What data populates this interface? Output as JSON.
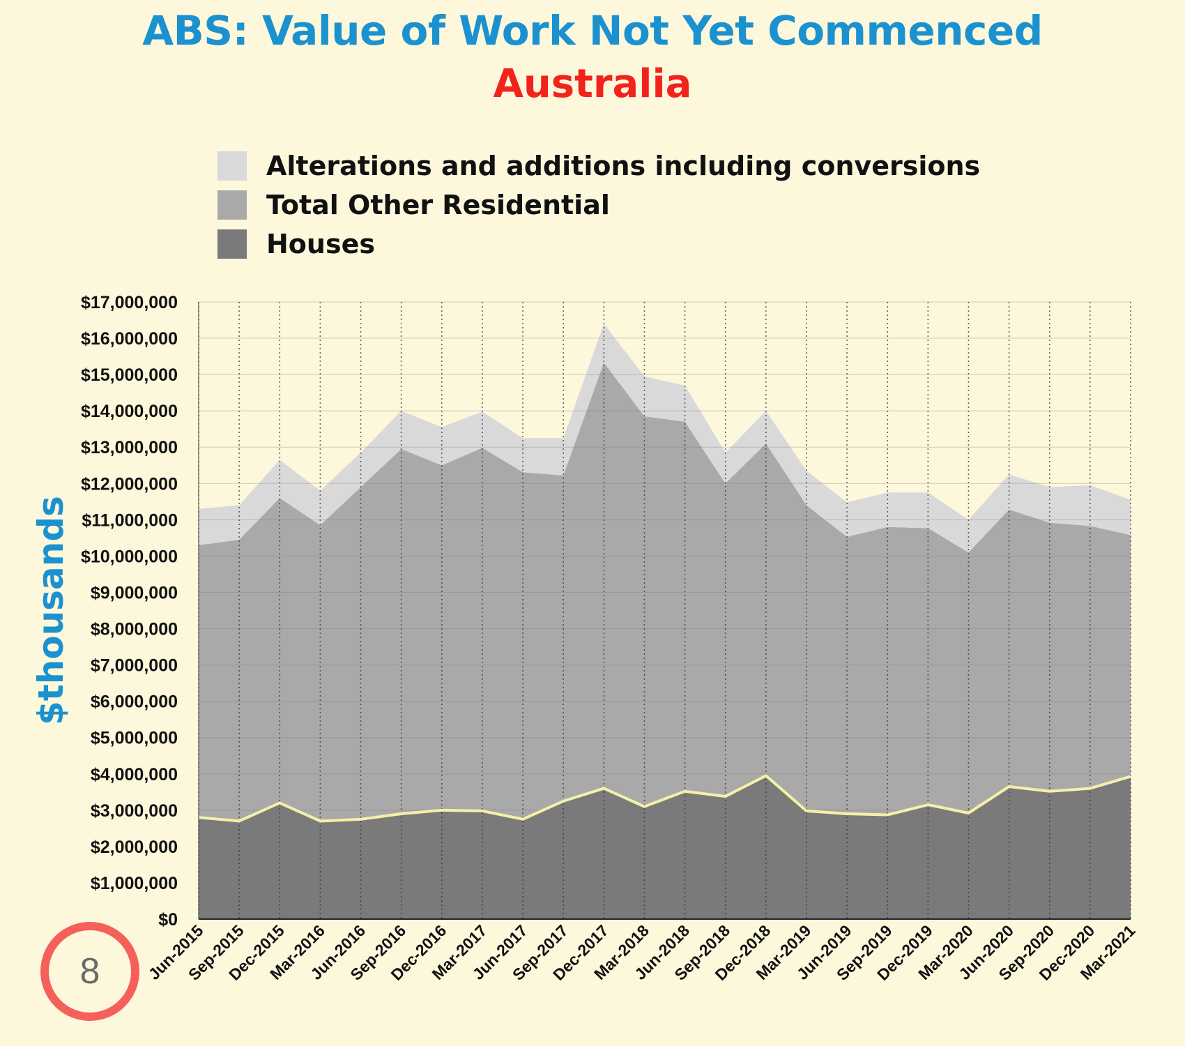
{
  "header": {
    "title": "ABS: Value of Work Not Yet Commenced",
    "subtitle": "Australia"
  },
  "badge": {
    "number": "8"
  },
  "colors": {
    "background": "#fdf7dc",
    "title": "#1b92cf",
    "subtitle": "#f2231b",
    "alterations": "#d9d9d9",
    "other_residential": "#a9a9a9",
    "houses": "#7a7a7a",
    "houses_outline": "#f4f1a6",
    "badge_ring": "#f5615a"
  },
  "chart_data": {
    "type": "area",
    "stacked": true,
    "title": "ABS: Value of Work Not Yet Commenced",
    "subtitle": "Australia",
    "ylabel": "$thousands",
    "xlabel": "",
    "ylim": [
      0,
      17000000
    ],
    "yticks": [
      "$0",
      "$1,000,000",
      "$2,000,000",
      "$3,000,000",
      "$4,000,000",
      "$5,000,000",
      "$6,000,000",
      "$7,000,000",
      "$8,000,000",
      "$9,000,000",
      "$10,000,000",
      "$11,000,000",
      "$12,000,000",
      "$13,000,000",
      "$14,000,000",
      "$15,000,000",
      "$16,000,000",
      "$17,000,000"
    ],
    "grid": {
      "horizontal": true,
      "vertical": "dotted"
    },
    "legend_position": "top",
    "categories": [
      "Jun-2015",
      "Sep-2015",
      "Dec-2015",
      "Mar-2016",
      "Jun-2016",
      "Sep-2016",
      "Dec-2016",
      "Mar-2017",
      "Jun-2017",
      "Sep-2017",
      "Dec-2017",
      "Mar-2018",
      "Jun-2018",
      "Sep-2018",
      "Dec-2018",
      "Mar-2019",
      "Jun-2019",
      "Sep-2019",
      "Dec-2019",
      "Mar-2020",
      "Jun-2020",
      "Sep-2020",
      "Dec-2020",
      "Mar-2021"
    ],
    "series": [
      {
        "name": "Houses",
        "color": "#7a7a7a",
        "values": [
          2800000,
          2700000,
          3200000,
          2700000,
          2750000,
          2900000,
          3000000,
          2980000,
          2750000,
          3250000,
          3600000,
          3100000,
          3520000,
          3380000,
          3950000,
          2980000,
          2900000,
          2870000,
          3150000,
          2920000,
          3650000,
          3520000,
          3600000,
          3930000
        ]
      },
      {
        "name": "Total Other Residential",
        "color": "#a9a9a9",
        "values": [
          7500000,
          7750000,
          8400000,
          8150000,
          9150000,
          10050000,
          9500000,
          10000000,
          9560000,
          8970000,
          11730000,
          10750000,
          10180000,
          8620000,
          9150000,
          8420000,
          7630000,
          7930000,
          7620000,
          7180000,
          7630000,
          7400000,
          7230000,
          6650000
        ]
      },
      {
        "name": "Alterations and additions including conversions",
        "color": "#d9d9d9",
        "values": [
          1000000,
          950000,
          1050000,
          950000,
          950000,
          1050000,
          1050000,
          1000000,
          940000,
          1030000,
          1070000,
          1100000,
          1000000,
          850000,
          900000,
          950000,
          950000,
          950000,
          980000,
          900000,
          970000,
          980000,
          1120000,
          970000
        ]
      }
    ]
  }
}
